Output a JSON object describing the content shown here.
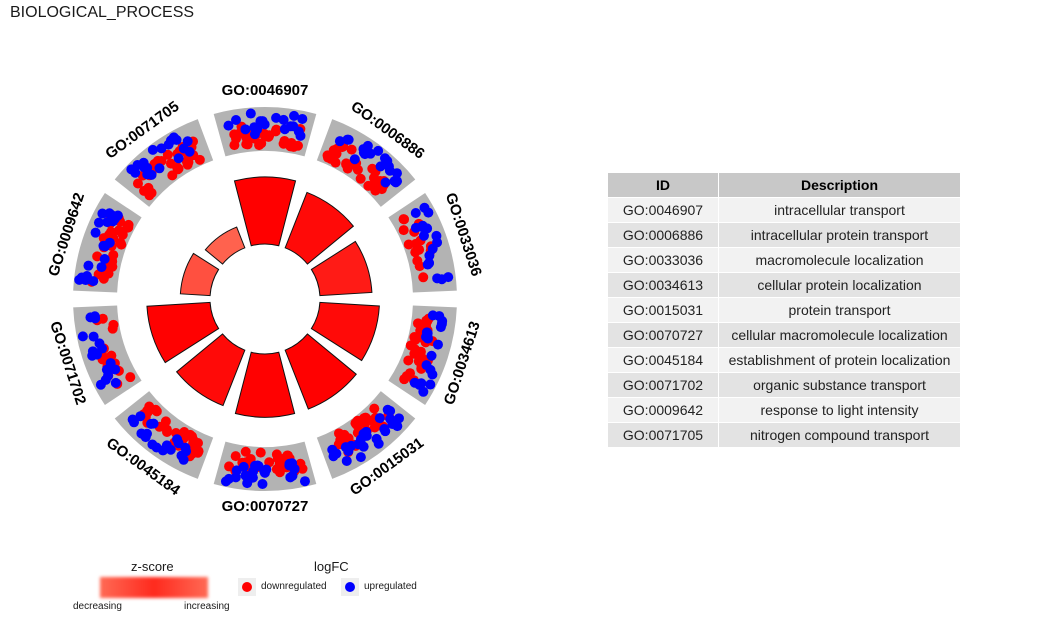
{
  "title": "BIOLOGICAL_PROCESS",
  "chart_data": {
    "type": "circular-bar-scatter",
    "categories": [
      "GO:0046907",
      "GO:0006886",
      "GO:0033036",
      "GO:0034613",
      "GO:0015031",
      "GO:0070727",
      "GO:0045184",
      "GO:0071702",
      "GO:0009642",
      "GO:0071705"
    ],
    "series": [
      {
        "name": "z-score",
        "values": [
          -9.0,
          -8.0,
          -7.0,
          -8.0,
          -8.5,
          -8.5,
          -8.0,
          -8.5,
          -4.0,
          -3.0
        ]
      },
      {
        "name": "downregulated",
        "values": [
          30,
          30,
          15,
          30,
          30,
          30,
          30,
          15,
          30,
          30
        ]
      },
      {
        "name": "upregulated",
        "values": [
          20,
          20,
          18,
          20,
          25,
          25,
          20,
          18,
          20,
          20
        ]
      }
    ],
    "colors": {
      "downregulated": "#ff0000",
      "upregulated": "#0000ff",
      "track": "#b3b3b3"
    }
  },
  "table": {
    "headers": [
      "ID",
      "Description"
    ],
    "rows": [
      [
        "GO:0046907",
        "intracellular transport"
      ],
      [
        "GO:0006886",
        "intracellular protein transport"
      ],
      [
        "GO:0033036",
        "macromolecule localization"
      ],
      [
        "GO:0034613",
        "cellular protein localization"
      ],
      [
        "GO:0015031",
        "protein transport"
      ],
      [
        "GO:0070727",
        "cellular macromolecule localization"
      ],
      [
        "GO:0045184",
        "establishment of protein localization"
      ],
      [
        "GO:0071702",
        "organic substance transport"
      ],
      [
        "GO:0009642",
        "response to light intensity"
      ],
      [
        "GO:0071705",
        "nitrogen compound transport"
      ]
    ]
  },
  "legend": {
    "zscore_title": "z-score",
    "zscore_low": "decreasing",
    "zscore_high": "increasing",
    "logfc_title": "logFC",
    "down_label": "downregulated",
    "up_label": "upregulated"
  }
}
